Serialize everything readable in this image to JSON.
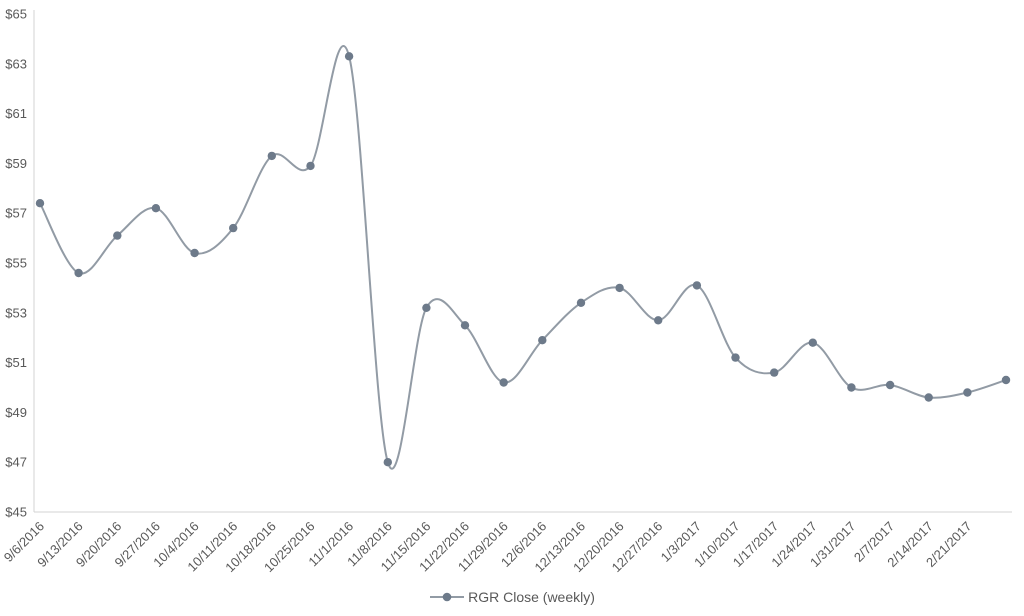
{
  "chart_data": {
    "type": "line",
    "title": "",
    "legend": "RGR Close (weekly)",
    "legend_position": "bottom",
    "smooth": true,
    "grid": false,
    "markers": true,
    "ylim": [
      45,
      65
    ],
    "ytick_step": 2,
    "ytick_prefix": "$",
    "xlabel": "",
    "ylabel": "",
    "categories": [
      "9/6/2016",
      "9/13/2016",
      "9/20/2016",
      "9/27/2016",
      "10/4/2016",
      "10/11/2016",
      "10/18/2016",
      "10/25/2016",
      "11/1/2016",
      "11/8/2016",
      "11/15/2016",
      "11/22/2016",
      "11/29/2016",
      "12/6/2016",
      "12/13/2016",
      "12/20/2016",
      "12/27/2016",
      "1/3/2017",
      "1/10/2017",
      "1/17/2017",
      "1/24/2017",
      "1/31/2017",
      "2/7/2017",
      "2/14/2017",
      "2/21/2017",
      ""
    ],
    "series": [
      {
        "name": "RGR Close (weekly)",
        "values": [
          57.4,
          54.6,
          56.1,
          57.2,
          55.4,
          56.4,
          59.3,
          58.9,
          63.3,
          47.0,
          53.2,
          52.5,
          50.2,
          51.9,
          53.4,
          54.0,
          52.7,
          54.1,
          51.2,
          50.6,
          51.8,
          50.0,
          50.1,
          49.6,
          49.8,
          50.3
        ]
      }
    ],
    "colors": {
      "line": "#929ba5",
      "marker": "#6d7a8a",
      "axis": "#d3d3d3",
      "tick_label": "#595959",
      "legend_text": "#595959",
      "background": "#ffffff"
    }
  }
}
